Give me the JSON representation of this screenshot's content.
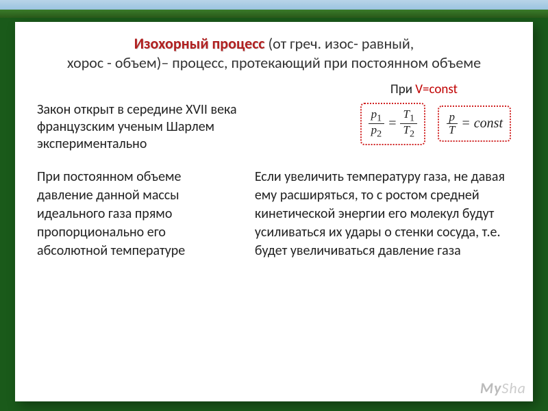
{
  "title": {
    "keyword": "Изохорный процесс",
    "rest1": " (от греч. изос- равный,",
    "line2": "хорос - объем)– процесс, протекающий при постоянном объеме"
  },
  "v_const": {
    "pre": "При ",
    "vc": "V=const"
  },
  "history": {
    "l1": "Закон открыт в середине XVII века",
    "l2": "французским ученым Шарлем",
    "l3": "экспериментально"
  },
  "formula1": {
    "p1": "p",
    "s1": "1",
    "p2": "p",
    "s2": "2",
    "t1": "T",
    "ts1": "1",
    "t2": "T",
    "ts2": "2",
    "eq": "="
  },
  "formula2": {
    "p": "p",
    "t": "T",
    "eq": "=",
    "const": "const"
  },
  "left_para": "При постоянном объеме давление данной массы идеального газа прямо пропорционально его абсолютной температуре",
  "right_para": "Если увеличить температуру газа, не давая ему расширяться, то с ростом средней кинетической энергии его молекул будут усиливаться их удары о стенки сосуда, т.е. будет увеличиваться давление газа",
  "watermark": {
    "a": "My",
    "b": "Sha"
  }
}
